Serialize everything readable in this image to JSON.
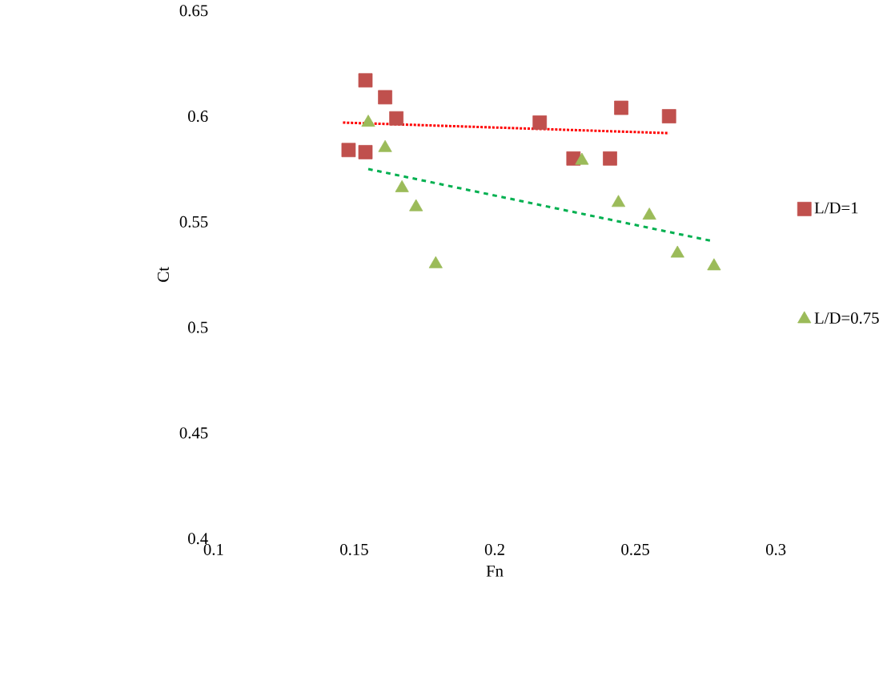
{
  "chart_data": {
    "type": "scatter",
    "xlabel": "Fn",
    "ylabel": "Ct",
    "xlim": [
      0.1,
      0.3
    ],
    "xticks": [
      0.1,
      0.15,
      0.2,
      0.25,
      0.3
    ],
    "ylim": [
      0.4,
      0.65
    ],
    "yticks": [
      0.4,
      0.45,
      0.5,
      0.55,
      0.6,
      0.65
    ],
    "grid": false,
    "legend": "right",
    "series": [
      {
        "name": "L/D=1",
        "color": "#c0504d",
        "marker": "square",
        "x": [
          0.154,
          0.161,
          0.165,
          0.148,
          0.154,
          0.216,
          0.228,
          0.245,
          0.241,
          0.262
        ],
        "values": [
          0.617,
          0.609,
          0.599,
          0.584,
          0.583,
          0.597,
          0.58,
          0.604,
          0.58,
          0.6
        ]
      },
      {
        "name": "L/D=0.75",
        "color": "#9bbb59",
        "marker": "triangle",
        "x": [
          0.155,
          0.161,
          0.167,
          0.172,
          0.179,
          0.231,
          0.244,
          0.255,
          0.265,
          0.278
        ],
        "values": [
          0.597,
          0.585,
          0.566,
          0.557,
          0.53,
          0.579,
          0.559,
          0.553,
          0.535,
          0.529
        ]
      },
      {
        "type": "line",
        "color": "#ff0000",
        "line_style": "dotted",
        "marker": "none",
        "x": [
          0.146,
          0.262
        ],
        "values": [
          0.597,
          0.592
        ]
      },
      {
        "type": "line",
        "color": "#00b050",
        "line_style": "dashed",
        "marker": "none",
        "x": [
          0.155,
          0.277
        ],
        "values": [
          0.575,
          0.541
        ]
      }
    ]
  }
}
